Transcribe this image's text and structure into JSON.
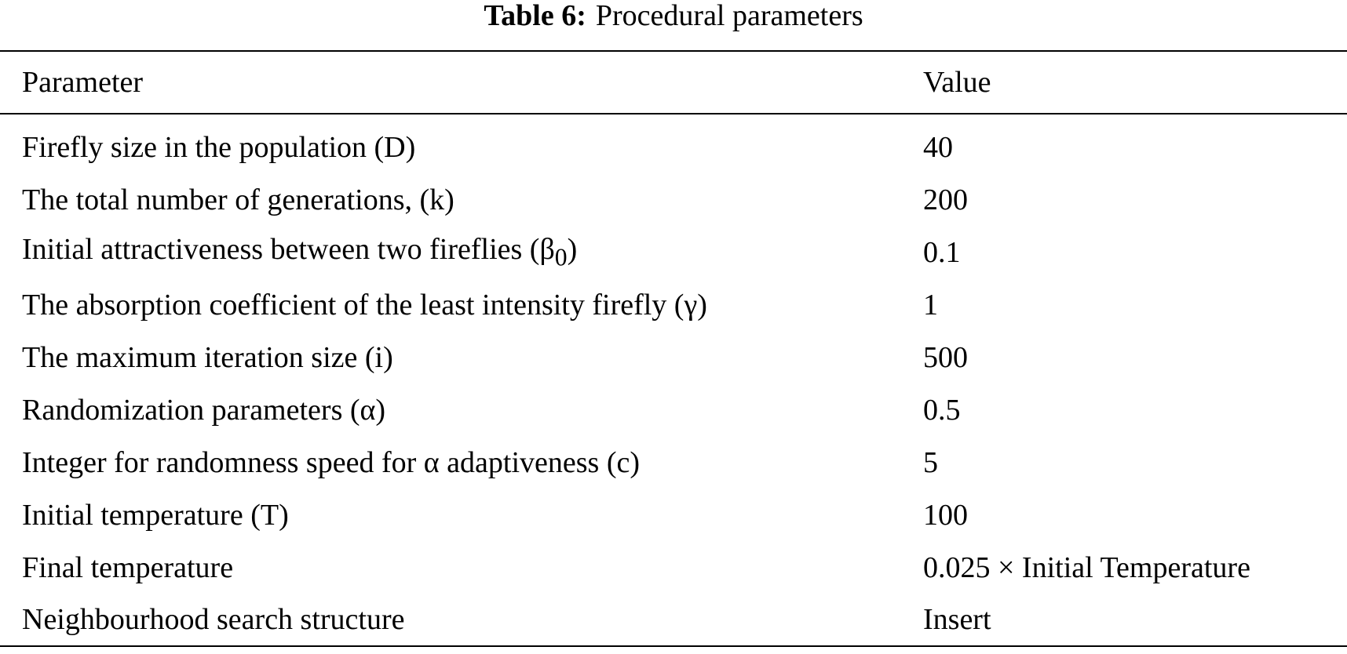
{
  "caption": {
    "label": "Table 6:",
    "title": "Procedural parameters"
  },
  "table": {
    "headers": [
      "Parameter",
      "Value"
    ],
    "rows": [
      {
        "parameter": "Firefly size in the population (D)",
        "value": "40"
      },
      {
        "parameter": "The total number of generations, (k)",
        "value": "200"
      },
      {
        "parameter": "Initial attractiveness between two fireflies (β",
        "subscript": "0",
        "suffix": ")",
        "value": "0.1"
      },
      {
        "parameter": "The absorption coefficient of the least intensity firefly (γ)",
        "value": "1"
      },
      {
        "parameter": "The maximum iteration size (i)",
        "value": "500"
      },
      {
        "parameter": "Randomization parameters (α)",
        "value": "0.5"
      },
      {
        "parameter": "Integer for randomness speed for α adaptiveness (c)",
        "value": "5"
      },
      {
        "parameter": "Initial temperature (T)",
        "value": "100"
      },
      {
        "parameter": "Final temperature",
        "value": "0.025 × Initial Temperature"
      },
      {
        "parameter": "Neighbourhood search structure",
        "value": "Insert"
      }
    ]
  }
}
